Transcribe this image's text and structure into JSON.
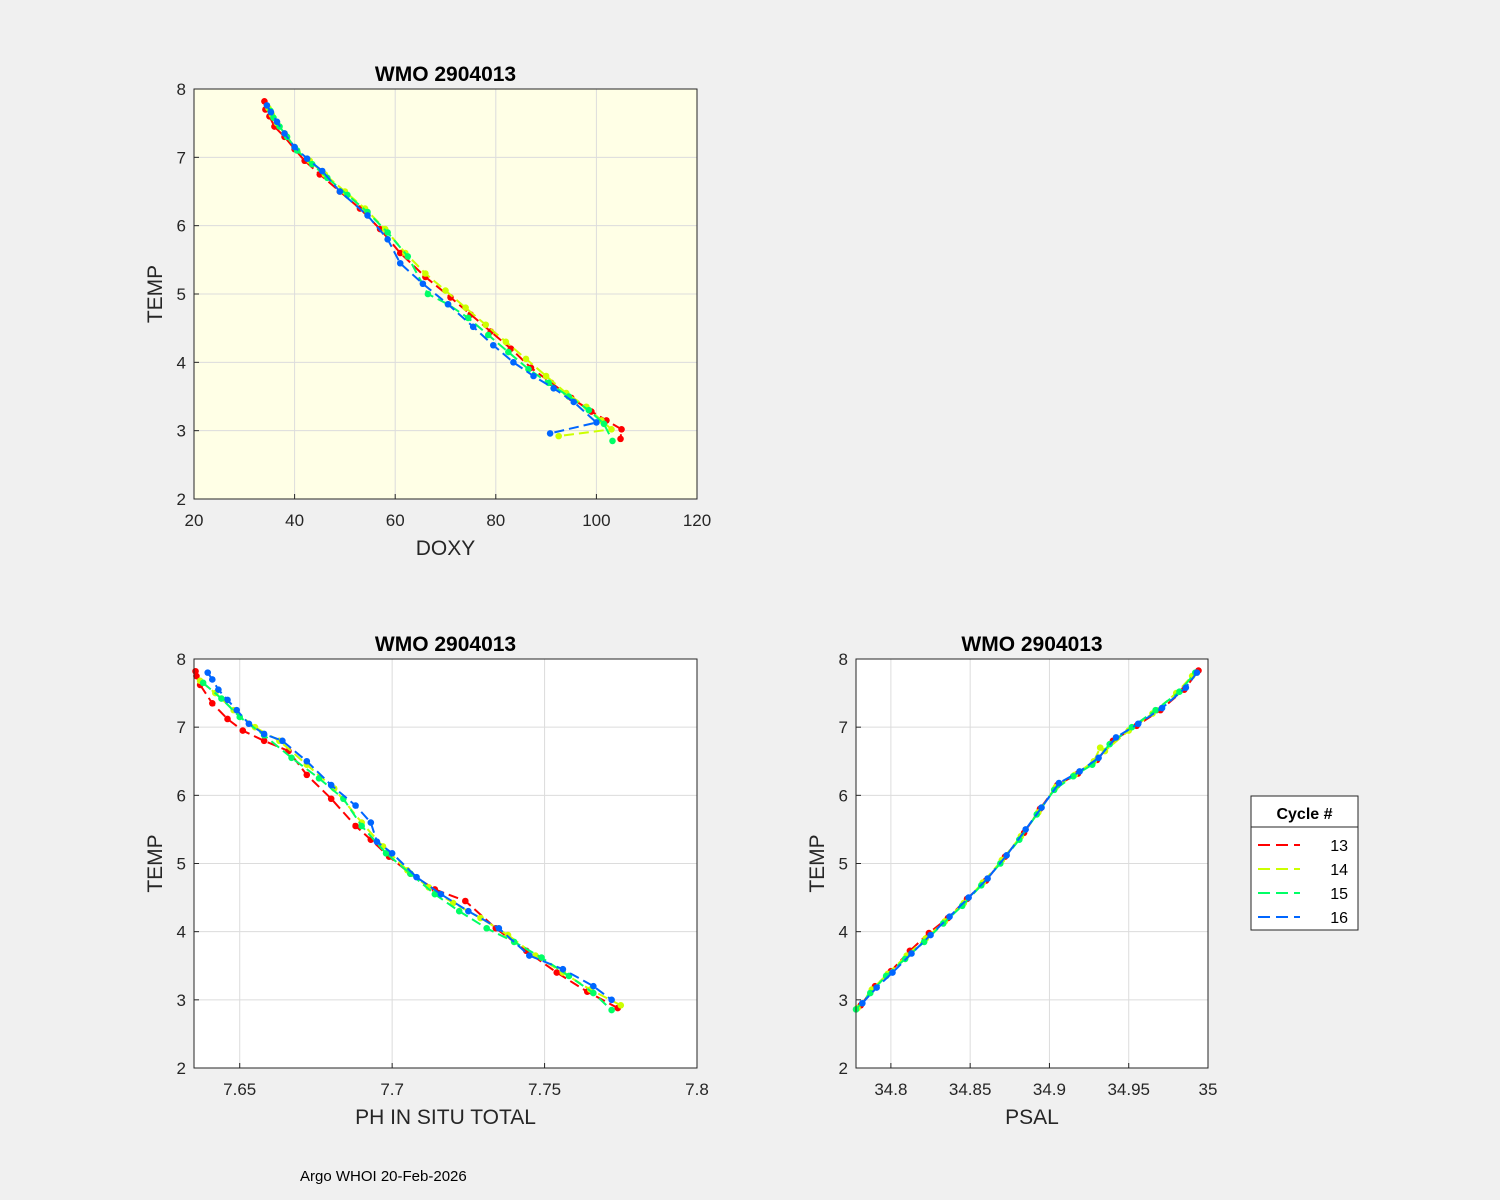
{
  "footer": "Argo WHOI 20-Feb-2026",
  "legend": {
    "title": "Cycle #",
    "placement": "right",
    "entries": [
      "13",
      "14",
      "15",
      "16"
    ]
  },
  "colors": {
    "figure_bg": "#f0f0f0",
    "highlight_axes_bg": "#ffffe6",
    "axes_bg": "#ffffff",
    "grid": "#dcdcdc",
    "13": "#ff0000",
    "14": "#ccff00",
    "15": "#00ff66",
    "16": "#0066ff"
  },
  "chart_data": [
    {
      "type": "line",
      "title": "WMO 2904013",
      "xlabel": "DOXY",
      "ylabel": "TEMP",
      "xlim": [
        20,
        120
      ],
      "ylim": [
        2,
        8
      ],
      "xticks": [
        "20",
        "40",
        "60",
        "80",
        "100",
        "120"
      ],
      "yticks": [
        "2",
        "3",
        "4",
        "5",
        "6",
        "7",
        "8"
      ],
      "grid": true,
      "highlight": true,
      "series": [
        {
          "name": "13",
          "x": [
            34,
            34.2,
            35,
            36,
            38,
            40,
            42,
            45,
            49,
            53,
            57,
            61,
            66,
            71,
            75,
            79,
            83,
            87,
            91,
            95,
            99,
            102,
            105,
            104.8
          ],
          "y": [
            7.82,
            7.7,
            7.6,
            7.45,
            7.3,
            7.12,
            6.95,
            6.75,
            6.5,
            6.25,
            5.95,
            5.6,
            5.25,
            4.95,
            4.7,
            4.45,
            4.2,
            3.92,
            3.7,
            3.48,
            3.28,
            3.15,
            3.02,
            2.88
          ]
        },
        {
          "name": "14",
          "x": [
            34.8,
            35.5,
            36.5,
            38,
            40,
            43,
            46,
            50,
            54,
            58,
            62,
            66,
            70,
            74,
            78,
            82,
            86,
            90,
            94,
            98,
            101,
            103,
            92.5
          ],
          "y": [
            7.72,
            7.62,
            7.5,
            7.35,
            7.15,
            6.95,
            6.75,
            6.5,
            6.25,
            5.95,
            5.6,
            5.3,
            5.05,
            4.8,
            4.55,
            4.3,
            4.05,
            3.8,
            3.55,
            3.35,
            3.15,
            3.02,
            2.92
          ]
        },
        {
          "name": "15",
          "x": [
            35.2,
            35.8,
            37,
            38.5,
            40.5,
            43.5,
            46.5,
            50.5,
            54.5,
            58.5,
            62.5,
            66.5,
            70.5,
            74.5,
            78.5,
            82.5,
            86.5,
            90.5,
            94.5,
            98.5,
            101.5,
            103.2
          ],
          "y": [
            7.68,
            7.58,
            7.45,
            7.3,
            7.1,
            6.9,
            6.7,
            6.45,
            6.2,
            5.9,
            5.55,
            5.0,
            4.85,
            4.65,
            4.4,
            4.15,
            3.9,
            3.7,
            3.5,
            3.3,
            3.1,
            2.85
          ]
        },
        {
          "name": "16",
          "x": [
            34.5,
            35.3,
            36.5,
            38,
            40,
            42.5,
            45.5,
            49,
            54.5,
            58.5,
            61,
            65.5,
            70.5,
            75.5,
            79.5,
            83.5,
            87.5,
            91.5,
            95.5,
            100,
            90.8
          ],
          "y": [
            7.76,
            7.66,
            7.52,
            7.35,
            7.15,
            6.98,
            6.8,
            6.5,
            6.15,
            5.8,
            5.45,
            5.15,
            4.85,
            4.52,
            4.25,
            4.0,
            3.8,
            3.62,
            3.42,
            3.12,
            2.96
          ]
        }
      ]
    },
    {
      "type": "line",
      "title": "WMO 2904013",
      "xlabel": "PH IN SITU TOTAL",
      "ylabel": "TEMP",
      "xlim": [
        7.635,
        7.8
      ],
      "ylim": [
        2,
        8
      ],
      "xticks": [
        "7.65",
        "7.7",
        "7.75",
        "7.8"
      ],
      "yticks": [
        "2",
        "3",
        "4",
        "5",
        "6",
        "7",
        "8"
      ],
      "grid": true,
      "highlight": false,
      "series": [
        {
          "name": "13",
          "x": [
            7.6355,
            7.6358,
            7.637,
            7.641,
            7.646,
            7.651,
            7.658,
            7.666,
            7.672,
            7.68,
            7.688,
            7.693,
            7.699,
            7.706,
            7.714,
            7.724,
            7.734,
            7.744,
            7.754,
            7.764,
            7.774
          ],
          "y": [
            7.82,
            7.75,
            7.62,
            7.35,
            7.12,
            6.95,
            6.8,
            6.65,
            6.3,
            5.95,
            5.55,
            5.35,
            5.1,
            4.85,
            4.62,
            4.45,
            4.05,
            3.72,
            3.4,
            3.12,
            2.88
          ]
        },
        {
          "name": "14",
          "x": [
            7.637,
            7.642,
            7.648,
            7.655,
            7.663,
            7.672,
            7.681,
            7.69,
            7.697,
            7.705,
            7.712,
            7.72,
            7.729,
            7.738,
            7.747,
            7.756,
            7.765,
            7.775
          ],
          "y": [
            7.68,
            7.5,
            7.25,
            7.0,
            6.8,
            6.45,
            6.1,
            5.6,
            5.25,
            4.9,
            4.65,
            4.42,
            4.2,
            3.95,
            3.65,
            3.4,
            3.15,
            2.92
          ]
        },
        {
          "name": "15",
          "x": [
            7.638,
            7.644,
            7.65,
            7.658,
            7.667,
            7.676,
            7.684,
            7.69,
            7.698,
            7.706,
            7.714,
            7.722,
            7.731,
            7.74,
            7.749,
            7.758,
            7.766,
            7.772
          ],
          "y": [
            7.65,
            7.42,
            7.15,
            6.88,
            6.55,
            6.25,
            5.95,
            5.55,
            5.15,
            4.85,
            4.55,
            4.3,
            4.05,
            3.85,
            3.62,
            3.35,
            3.1,
            2.85
          ]
        },
        {
          "name": "16",
          "x": [
            7.6395,
            7.641,
            7.643,
            7.646,
            7.649,
            7.653,
            7.658,
            7.664,
            7.672,
            7.68,
            7.688,
            7.693,
            7.695,
            7.7,
            7.708,
            7.716,
            7.725,
            7.735,
            7.745,
            7.756,
            7.766,
            7.772
          ],
          "y": [
            7.8,
            7.7,
            7.55,
            7.4,
            7.25,
            7.05,
            6.9,
            6.8,
            6.5,
            6.15,
            5.85,
            5.6,
            5.32,
            5.15,
            4.8,
            4.55,
            4.3,
            4.05,
            3.65,
            3.45,
            3.2,
            3.0
          ]
        }
      ]
    },
    {
      "type": "line",
      "title": "WMO 2904013",
      "xlabel": "PSAL",
      "ylabel": "TEMP",
      "xlim": [
        34.778,
        35.0
      ],
      "ylim": [
        2,
        8
      ],
      "xticks": [
        "34.8",
        "34.85",
        "34.9",
        "34.95",
        "35"
      ],
      "yticks": [
        "2",
        "3",
        "4",
        "5",
        "6",
        "7",
        "8"
      ],
      "grid": true,
      "highlight": false,
      "series": [
        {
          "name": "13",
          "x": [
            34.781,
            34.79,
            34.8,
            34.812,
            34.824,
            34.836,
            34.848,
            34.86,
            34.872,
            34.884,
            34.894,
            34.905,
            34.918,
            34.93,
            34.94,
            34.955,
            34.97,
            34.985,
            34.994
          ],
          "y": [
            2.92,
            3.2,
            3.42,
            3.72,
            3.98,
            4.2,
            4.48,
            4.75,
            5.1,
            5.45,
            5.8,
            6.15,
            6.32,
            6.52,
            6.8,
            7.02,
            7.25,
            7.55,
            7.83
          ]
        },
        {
          "name": "14",
          "x": [
            34.779,
            34.788,
            34.798,
            34.81,
            34.822,
            34.834,
            34.846,
            34.858,
            34.87,
            34.882,
            34.893,
            34.904,
            34.916,
            34.928,
            34.932,
            34.935,
            34.95,
            34.965,
            34.98,
            34.99
          ],
          "y": [
            2.88,
            3.15,
            3.38,
            3.65,
            3.9,
            4.15,
            4.42,
            4.72,
            5.05,
            5.4,
            5.75,
            6.12,
            6.3,
            6.5,
            6.7,
            6.65,
            6.95,
            7.2,
            7.5,
            7.75
          ]
        },
        {
          "name": "15",
          "x": [
            34.778,
            34.787,
            34.797,
            34.809,
            34.821,
            34.833,
            34.845,
            34.857,
            34.869,
            34.881,
            34.892,
            34.903,
            34.915,
            34.927,
            34.938,
            34.952,
            34.967,
            34.982,
            34.992
          ],
          "y": [
            2.86,
            3.1,
            3.35,
            3.6,
            3.85,
            4.12,
            4.38,
            4.68,
            5.0,
            5.35,
            5.72,
            6.08,
            6.28,
            6.45,
            6.75,
            7.0,
            7.25,
            7.52,
            7.8
          ]
        },
        {
          "name": "16",
          "x": [
            34.782,
            34.791,
            34.801,
            34.813,
            34.825,
            34.837,
            34.849,
            34.861,
            34.873,
            34.885,
            34.895,
            34.906,
            34.919,
            34.931,
            34.942,
            34.956,
            34.971,
            34.986,
            34.993
          ],
          "y": [
            2.95,
            3.18,
            3.4,
            3.68,
            3.95,
            4.22,
            4.5,
            4.78,
            5.12,
            5.5,
            5.82,
            6.18,
            6.35,
            6.55,
            6.85,
            7.05,
            7.28,
            7.58,
            7.8
          ]
        }
      ]
    }
  ]
}
